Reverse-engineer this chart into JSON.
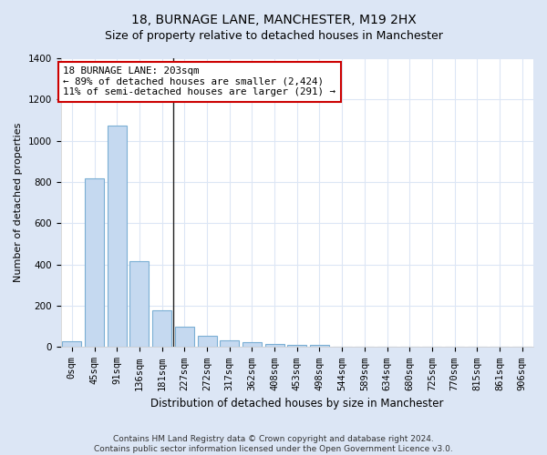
{
  "title": "18, BURNAGE LANE, MANCHESTER, M19 2HX",
  "subtitle": "Size of property relative to detached houses in Manchester",
  "xlabel": "Distribution of detached houses by size in Manchester",
  "ylabel": "Number of detached properties",
  "footer_line1": "Contains HM Land Registry data © Crown copyright and database right 2024.",
  "footer_line2": "Contains public sector information licensed under the Open Government Licence v3.0.",
  "bin_labels": [
    "0sqm",
    "45sqm",
    "91sqm",
    "136sqm",
    "181sqm",
    "227sqm",
    "272sqm",
    "317sqm",
    "362sqm",
    "408sqm",
    "453sqm",
    "498sqm",
    "544sqm",
    "589sqm",
    "634sqm",
    "680sqm",
    "725sqm",
    "770sqm",
    "815sqm",
    "861sqm",
    "906sqm"
  ],
  "bar_values": [
    30,
    820,
    1075,
    415,
    180,
    100,
    55,
    35,
    25,
    15,
    10,
    10,
    0,
    0,
    0,
    0,
    0,
    0,
    0,
    0,
    0
  ],
  "bar_color": "#c5d9f0",
  "bar_edge_color": "#7bafd4",
  "vline_x": 4.52,
  "vline_color": "#222222",
  "annotation_text": "18 BURNAGE LANE: 203sqm\n← 89% of detached houses are smaller (2,424)\n11% of semi-detached houses are larger (291) →",
  "annotation_box_color": "#cc0000",
  "ylim": [
    0,
    1400
  ],
  "yticks": [
    0,
    200,
    400,
    600,
    800,
    1000,
    1200,
    1400
  ],
  "outer_background": "#dce6f5",
  "plot_background": "#ffffff",
  "grid_color": "#dce6f5",
  "title_fontsize": 10,
  "ylabel_fontsize": 8,
  "xlabel_fontsize": 8.5,
  "tick_fontsize": 7.5,
  "annotation_fontsize": 7.8,
  "footer_fontsize": 6.5
}
